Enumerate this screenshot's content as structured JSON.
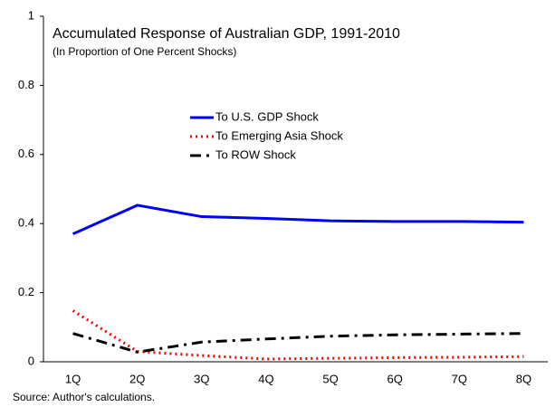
{
  "chart_data": {
    "type": "line",
    "title": "Accumulated Response of Australian GDP, 1991-2010",
    "subtitle": "(In Proportion of One Percent Shocks)",
    "source": "Source: Author's calculations.",
    "categories": [
      "1Q",
      "2Q",
      "3Q",
      "4Q",
      "5Q",
      "6Q",
      "7Q",
      "8Q"
    ],
    "series": [
      {
        "name": "To U.S. GDP Shock",
        "color": "#0000ff",
        "dash": "solid",
        "values": [
          0.37,
          0.453,
          0.42,
          0.415,
          0.408,
          0.406,
          0.406,
          0.404
        ]
      },
      {
        "name": "To Emerging Asia Shock",
        "color": "#ff0000",
        "dash": "dot",
        "values": [
          0.148,
          0.03,
          0.018,
          0.008,
          0.01,
          0.012,
          0.013,
          0.015
        ]
      },
      {
        "name": "To ROW Shock",
        "color": "#000000",
        "dash": "dashdot",
        "values": [
          0.082,
          0.028,
          0.057,
          0.066,
          0.074,
          0.078,
          0.08,
          0.082
        ]
      }
    ],
    "ylim": [
      0,
      1
    ],
    "yticks": [
      0,
      0.2,
      0.4,
      0.6,
      0.8,
      1
    ],
    "grid": false
  }
}
